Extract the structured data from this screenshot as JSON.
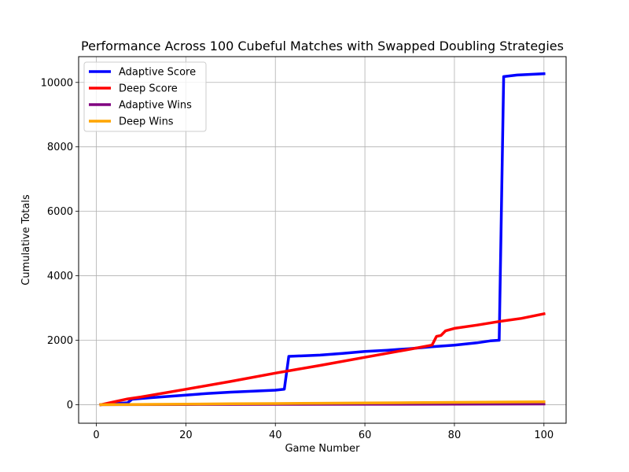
{
  "chart_data": {
    "type": "line",
    "title": "Performance Across 100 Cubeful Matches with Swapped Doubling Strategies",
    "xlabel": "Game Number",
    "ylabel": "Cumulative Totals",
    "xlim": [
      -3.95,
      104.95
    ],
    "ylim": [
      -575,
      10800
    ],
    "xticks": [
      0,
      20,
      40,
      60,
      80,
      100
    ],
    "yticks": [
      0,
      2000,
      4000,
      6000,
      8000,
      10000
    ],
    "grid": true,
    "legend_position": "upper left",
    "series": [
      {
        "name": "Adaptive Score",
        "color": "#0000ff",
        "points": [
          [
            1,
            0
          ],
          [
            7,
            60
          ],
          [
            8,
            170
          ],
          [
            12,
            215
          ],
          [
            20,
            300
          ],
          [
            25,
            350
          ],
          [
            30,
            390
          ],
          [
            35,
            420
          ],
          [
            40,
            450
          ],
          [
            42,
            480
          ],
          [
            43,
            1500
          ],
          [
            50,
            1540
          ],
          [
            55,
            1590
          ],
          [
            60,
            1650
          ],
          [
            65,
            1690
          ],
          [
            70,
            1740
          ],
          [
            75,
            1800
          ],
          [
            80,
            1850
          ],
          [
            85,
            1920
          ],
          [
            88,
            1980
          ],
          [
            90,
            2000
          ],
          [
            91,
            10180
          ],
          [
            94,
            10230
          ],
          [
            100,
            10270
          ]
        ]
      },
      {
        "name": "Deep Score",
        "color": "#ff0000",
        "points": [
          [
            1,
            0
          ],
          [
            7,
            180
          ],
          [
            10,
            240
          ],
          [
            20,
            480
          ],
          [
            30,
            720
          ],
          [
            40,
            980
          ],
          [
            50,
            1220
          ],
          [
            60,
            1470
          ],
          [
            70,
            1720
          ],
          [
            75,
            1850
          ],
          [
            76,
            2120
          ],
          [
            77,
            2150
          ],
          [
            78,
            2290
          ],
          [
            80,
            2370
          ],
          [
            85,
            2470
          ],
          [
            90,
            2580
          ],
          [
            95,
            2680
          ],
          [
            100,
            2820
          ]
        ]
      },
      {
        "name": "Adaptive Wins",
        "color": "#800080",
        "points": [
          [
            1,
            0
          ],
          [
            20,
            5
          ],
          [
            40,
            10
          ],
          [
            60,
            14
          ],
          [
            80,
            18
          ],
          [
            100,
            22
          ]
        ]
      },
      {
        "name": "Deep Wins",
        "color": "#ffa500",
        "points": [
          [
            1,
            0
          ],
          [
            10,
            9
          ],
          [
            20,
            18
          ],
          [
            30,
            27
          ],
          [
            40,
            36
          ],
          [
            50,
            45
          ],
          [
            60,
            54
          ],
          [
            70,
            63
          ],
          [
            80,
            72
          ],
          [
            90,
            81
          ],
          [
            100,
            90
          ]
        ]
      }
    ]
  }
}
